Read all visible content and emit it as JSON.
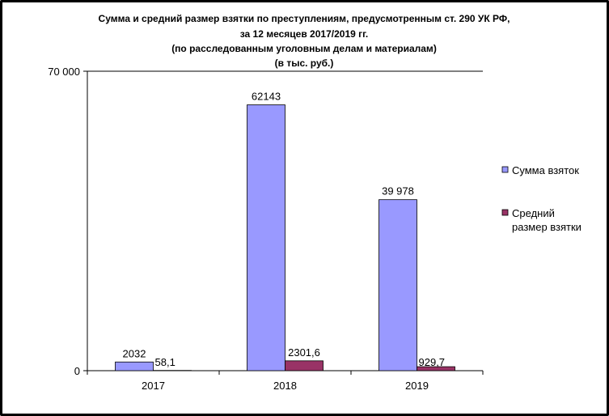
{
  "chart_data": {
    "type": "bar",
    "title_lines": [
      "Сумма и средний размер взятки по преступлениям, предусмотренным ст. 290 УК РФ,",
      "за 12 месяцев 2017/2019 гг.",
      "(по расследованным уголовным делам и материалам)",
      "(в тыс. руб.)"
    ],
    "categories": [
      "2017",
      "2018",
      "2019"
    ],
    "series": [
      {
        "name": "Сумма взяток",
        "color": "#9999ff",
        "values": [
          2032,
          62143,
          39978
        ],
        "labels": [
          "2032",
          "62143",
          "39 978"
        ]
      },
      {
        "name": "Средний размер взятки",
        "legend_lines": [
          "Средний",
          "размер взятки"
        ],
        "color": "#993366",
        "values": [
          58.1,
          2301.6,
          929.7
        ],
        "labels": [
          "58,1",
          "2301,6",
          "929,7"
        ]
      }
    ],
    "ylim": [
      0,
      70000
    ],
    "yticks": [
      0,
      70000
    ],
    "ytick_labels": [
      "0",
      "70 000"
    ],
    "grid": false,
    "legend_position": "right"
  }
}
